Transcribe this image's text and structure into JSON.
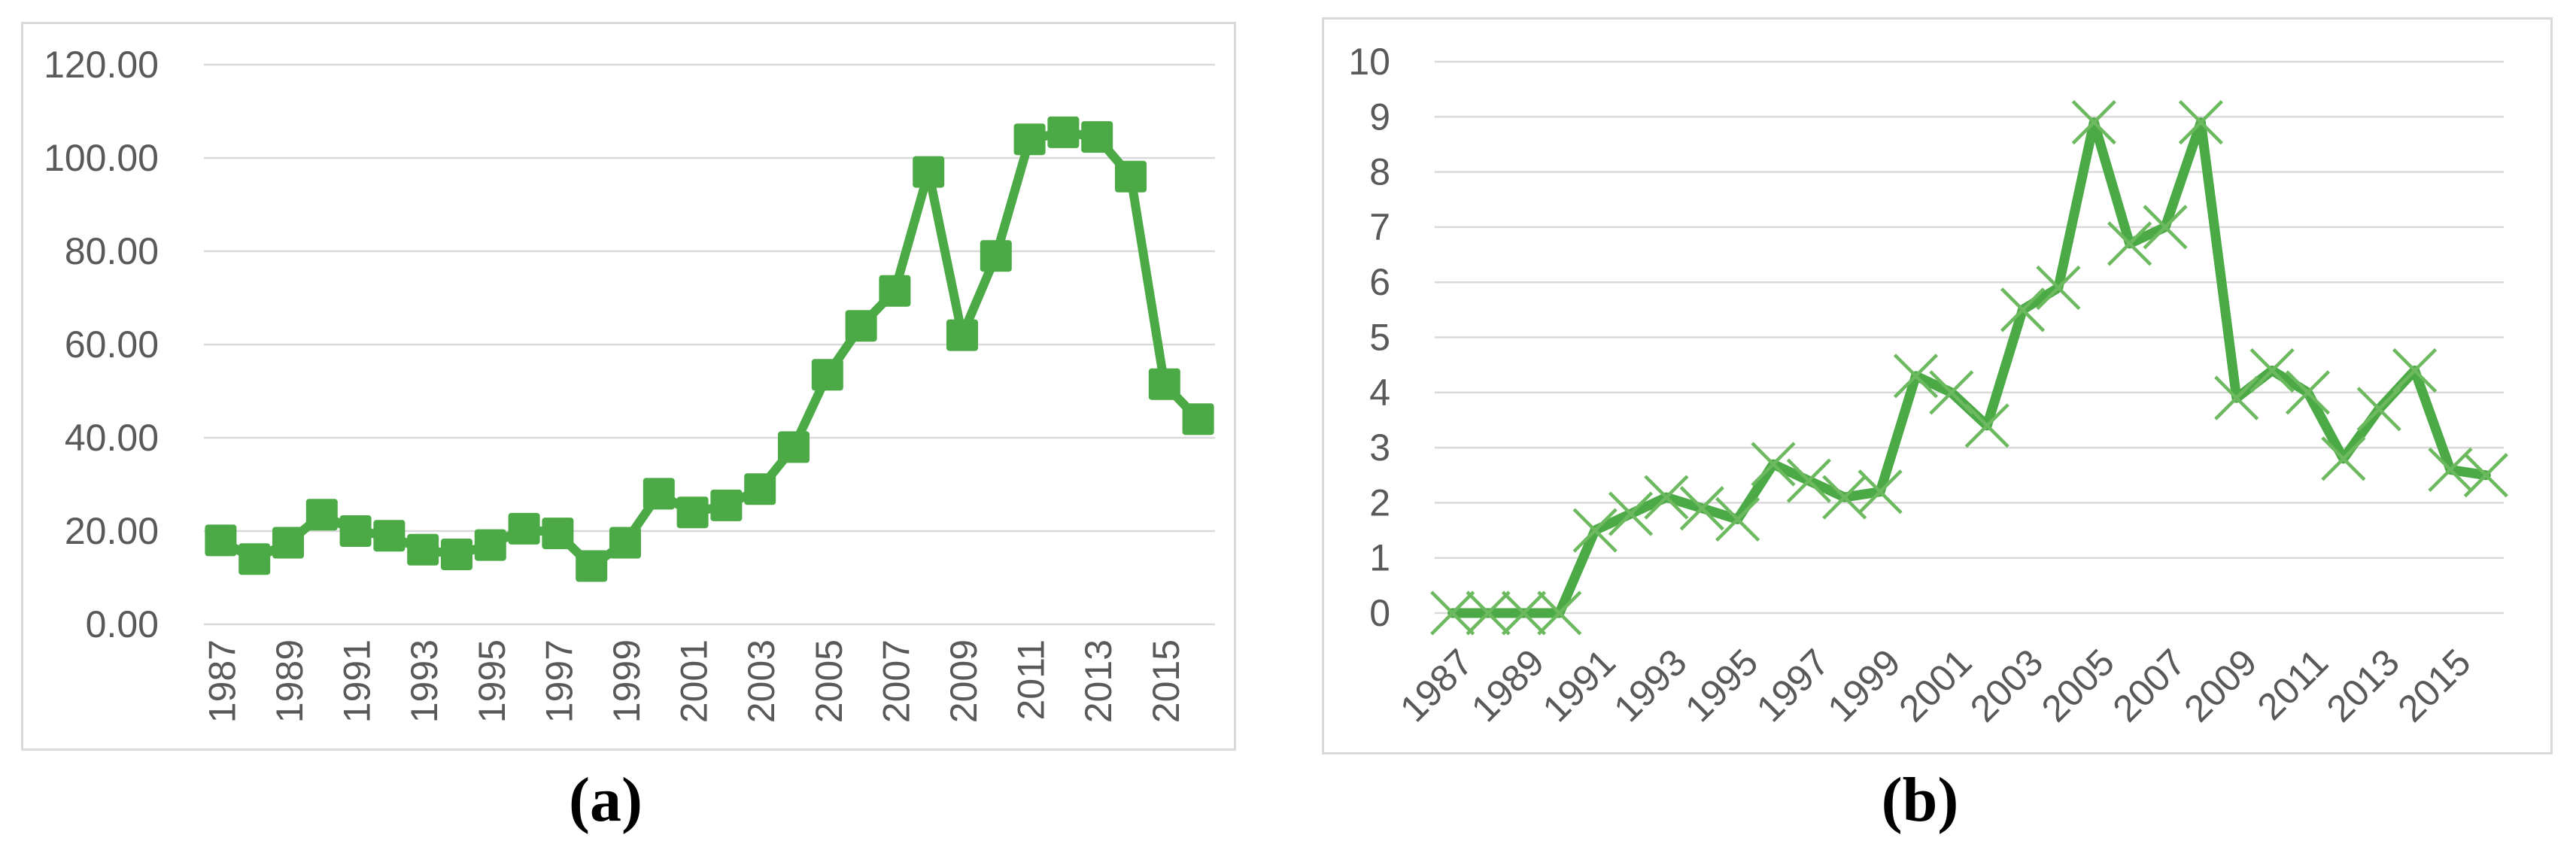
{
  "figure": {
    "caption_a": "(a)",
    "caption_b": "(b)"
  },
  "colors": {
    "series_green": "#4BAA46",
    "marker_x_green": "#6DB95F",
    "gridline": "#D9D9D9",
    "panel_border": "#D9D9D9",
    "tick_text": "#595959",
    "background": "#FFFFFF",
    "caption_text": "#000000"
  },
  "chart_data": [
    {
      "id": "a",
      "type": "line",
      "marker": "square",
      "title": "",
      "xlabel": "",
      "ylabel": "",
      "x": [
        1987,
        1988,
        1989,
        1990,
        1991,
        1992,
        1993,
        1994,
        1995,
        1996,
        1997,
        1998,
        1999,
        2000,
        2001,
        2002,
        2003,
        2004,
        2005,
        2006,
        2007,
        2008,
        2009,
        2010,
        2011,
        2012,
        2013,
        2014,
        2015,
        2016
      ],
      "values": [
        18,
        14,
        17.5,
        23.5,
        20,
        19,
        16,
        15,
        17,
        20.5,
        19.5,
        12.5,
        17.5,
        28,
        24,
        25.5,
        29,
        38,
        53.5,
        64,
        71.5,
        97,
        62,
        79,
        104,
        105.5,
        104.5,
        96,
        51.5,
        44
      ],
      "ylim": [
        0,
        120
      ],
      "y_step": 20,
      "y_tick_labels": [
        "0.00",
        "20.00",
        "40.00",
        "60.00",
        "80.00",
        "100.00",
        "120.00"
      ],
      "x_tick_labels": [
        "1987",
        "1989",
        "1991",
        "1993",
        "1995",
        "1997",
        "1999",
        "2001",
        "2003",
        "2005",
        "2007",
        "2009",
        "2011",
        "2013",
        "2015"
      ],
      "x_tick_step": 2,
      "x_label_rotation": -90,
      "grid": "horizontal",
      "legend": "none"
    },
    {
      "id": "b",
      "type": "line",
      "marker": "x",
      "title": "",
      "xlabel": "",
      "ylabel": "",
      "x": [
        1987,
        1988,
        1989,
        1990,
        1991,
        1992,
        1993,
        1994,
        1995,
        1996,
        1997,
        1998,
        1999,
        2000,
        2001,
        2002,
        2003,
        2004,
        2005,
        2006,
        2007,
        2008,
        2009,
        2010,
        2011,
        2012,
        2013,
        2014,
        2015,
        2016
      ],
      "values": [
        0,
        0,
        0,
        0,
        1.5,
        1.8,
        2.1,
        1.9,
        1.7,
        2.7,
        2.4,
        2.1,
        2.2,
        4.3,
        4.0,
        3.4,
        5.5,
        5.9,
        8.9,
        6.7,
        7.0,
        8.9,
        3.9,
        4.4,
        4.0,
        2.8,
        3.7,
        4.4,
        2.6,
        2.5
      ],
      "ylim": [
        0,
        10
      ],
      "y_step": 1,
      "y_tick_labels": [
        "0",
        "1",
        "2",
        "3",
        "4",
        "5",
        "6",
        "7",
        "8",
        "9",
        "10"
      ],
      "x_tick_labels": [
        "1987",
        "1989",
        "1991",
        "1993",
        "1995",
        "1997",
        "1999",
        "2001",
        "2003",
        "2005",
        "2007",
        "2009",
        "2011",
        "2013",
        "2015"
      ],
      "x_tick_step": 2,
      "x_label_rotation": -45,
      "grid": "horizontal",
      "legend": "none"
    }
  ]
}
